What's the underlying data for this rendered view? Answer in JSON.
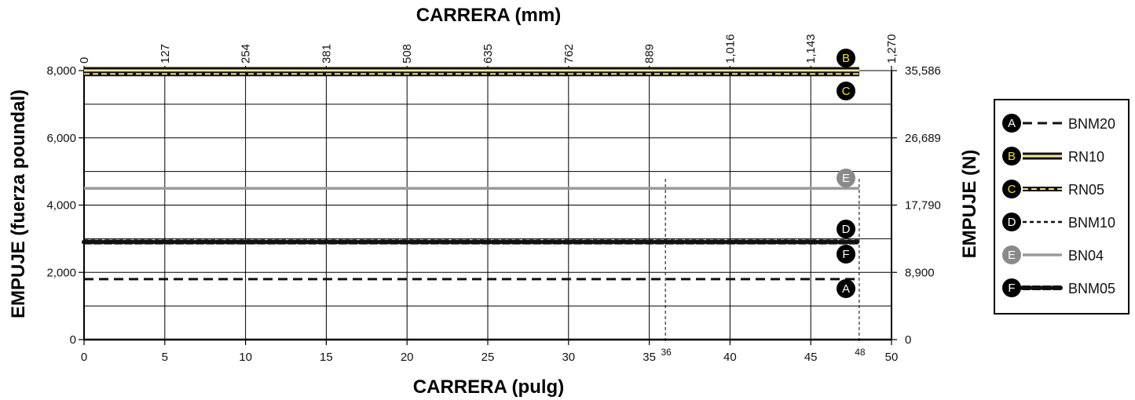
{
  "chart_data": {
    "type": "line",
    "x_bottom": {
      "label": "CARRERA (pulg)",
      "ticks": [
        0,
        5,
        10,
        15,
        20,
        25,
        30,
        35,
        40,
        45,
        50
      ],
      "range": [
        0,
        50
      ]
    },
    "x_top": {
      "label": "CARRERA (mm)",
      "ticks": [
        "0",
        "127",
        "254",
        "381",
        "508",
        "635",
        "762",
        "889",
        "1,016",
        "1,143",
        "1,270"
      ]
    },
    "y_left": {
      "label": "EMPUJE (fuerza poundal)",
      "ticks": [
        0,
        2000,
        4000,
        6000,
        8000
      ],
      "tick_labels": [
        "0",
        "2,000",
        "4,000",
        "6,000",
        "8,000"
      ],
      "range": [
        0,
        8000
      ]
    },
    "y_right": {
      "label": "EMPUJE (N)",
      "tick_labels": [
        "0",
        "8,900",
        "17,790",
        "26,689",
        "35,586"
      ]
    },
    "stroke_markers": [
      {
        "x": 36,
        "label": "36"
      },
      {
        "x": 48,
        "label": "48"
      }
    ],
    "grid": true,
    "legend_position": "right",
    "series": [
      {
        "id": "A",
        "name": "BNM20",
        "x": [
          0,
          48
        ],
        "y": [
          1800,
          1800
        ],
        "style": "dashed-black",
        "badge_color": "#000000",
        "letter_color": "#ffffff"
      },
      {
        "id": "B",
        "name": "RN10",
        "x": [
          0,
          48
        ],
        "y": [
          8000,
          8000
        ],
        "style": "double-black-yellow",
        "badge_color": "#000000",
        "letter_color": "#f2e11a"
      },
      {
        "id": "C",
        "name": "RN05",
        "x": [
          0,
          48
        ],
        "y": [
          7900,
          7900
        ],
        "style": "double-black-yellow-dashed",
        "badge_color": "#000000",
        "letter_color": "#f2e11a"
      },
      {
        "id": "D",
        "name": "BNM10",
        "x": [
          0,
          48
        ],
        "y": [
          2950,
          2950
        ],
        "style": "short-dash-black",
        "badge_color": "#000000",
        "letter_color": "#ffffff"
      },
      {
        "id": "E",
        "name": "BN04",
        "x": [
          0,
          48
        ],
        "y": [
          4500,
          4500
        ],
        "style": "solid-gray",
        "badge_color": "#8a8a8a",
        "letter_color": "#ffffff"
      },
      {
        "id": "F",
        "name": "BNM05",
        "x": [
          0,
          48
        ],
        "y": [
          2900,
          2900
        ],
        "style": "dotted-bold-black",
        "badge_color": "#000000",
        "letter_color": "#ffffff"
      }
    ]
  }
}
